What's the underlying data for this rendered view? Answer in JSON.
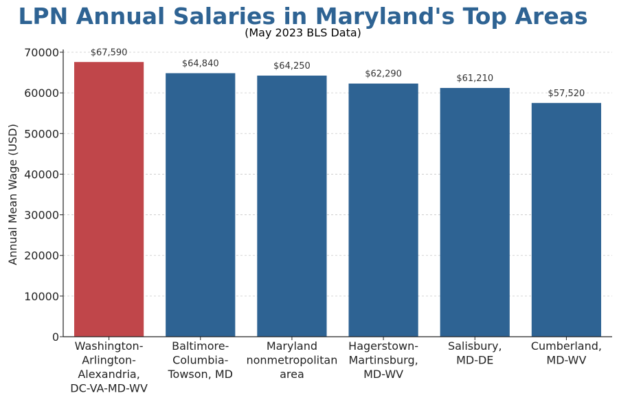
{
  "chart_data": {
    "type": "bar",
    "title": "LPN Annual Salaries in Maryland's Top Areas",
    "subtitle": "(May 2023 BLS Data)",
    "ylabel": "Annual Mean Wage (USD)",
    "xlabel": "",
    "ylim": [
      0,
      70000
    ],
    "yticks": [
      "0",
      "10000",
      "20000",
      "30000",
      "40000",
      "50000",
      "60000",
      "70000"
    ],
    "grid": "horizontal dashed",
    "categories": [
      [
        "Washington-",
        "Arlington-",
        "Alexandria,",
        "DC-VA-MD-WV"
      ],
      [
        "Baltimore-",
        "Columbia-",
        "Towson, MD"
      ],
      [
        "Maryland",
        "nonmetropolitan",
        "area"
      ],
      [
        "Hagerstown-",
        "Martinsburg,",
        "MD-WV"
      ],
      [
        "Salisbury,",
        "MD-DE"
      ],
      [
        "Cumberland,",
        "MD-WV"
      ]
    ],
    "values": [
      67590,
      64840,
      64250,
      62290,
      61210,
      57520
    ],
    "value_labels": [
      "$67,590",
      "$64,840",
      "$64,250",
      "$62,290",
      "$61,210",
      "$57,520"
    ],
    "colors": [
      "#c0464a",
      "#2e6393",
      "#2e6393",
      "#2e6393",
      "#2e6393",
      "#2e6393"
    ]
  }
}
